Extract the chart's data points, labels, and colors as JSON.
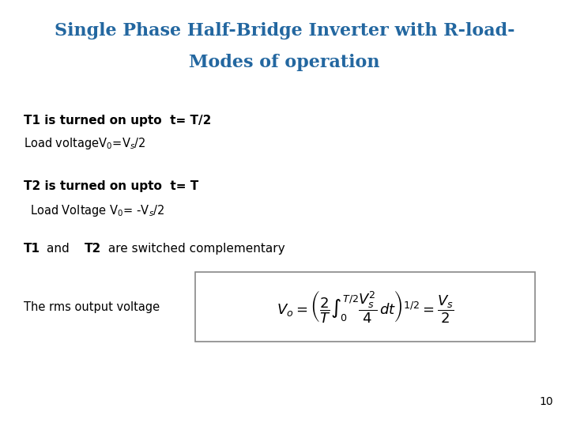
{
  "title_line1": "Single Phase Half-Bridge Inverter with R-load-",
  "title_line2": "Modes of operation",
  "title_color": "#2367A0",
  "bg_color": "#FFFFFF",
  "page_number": "10"
}
